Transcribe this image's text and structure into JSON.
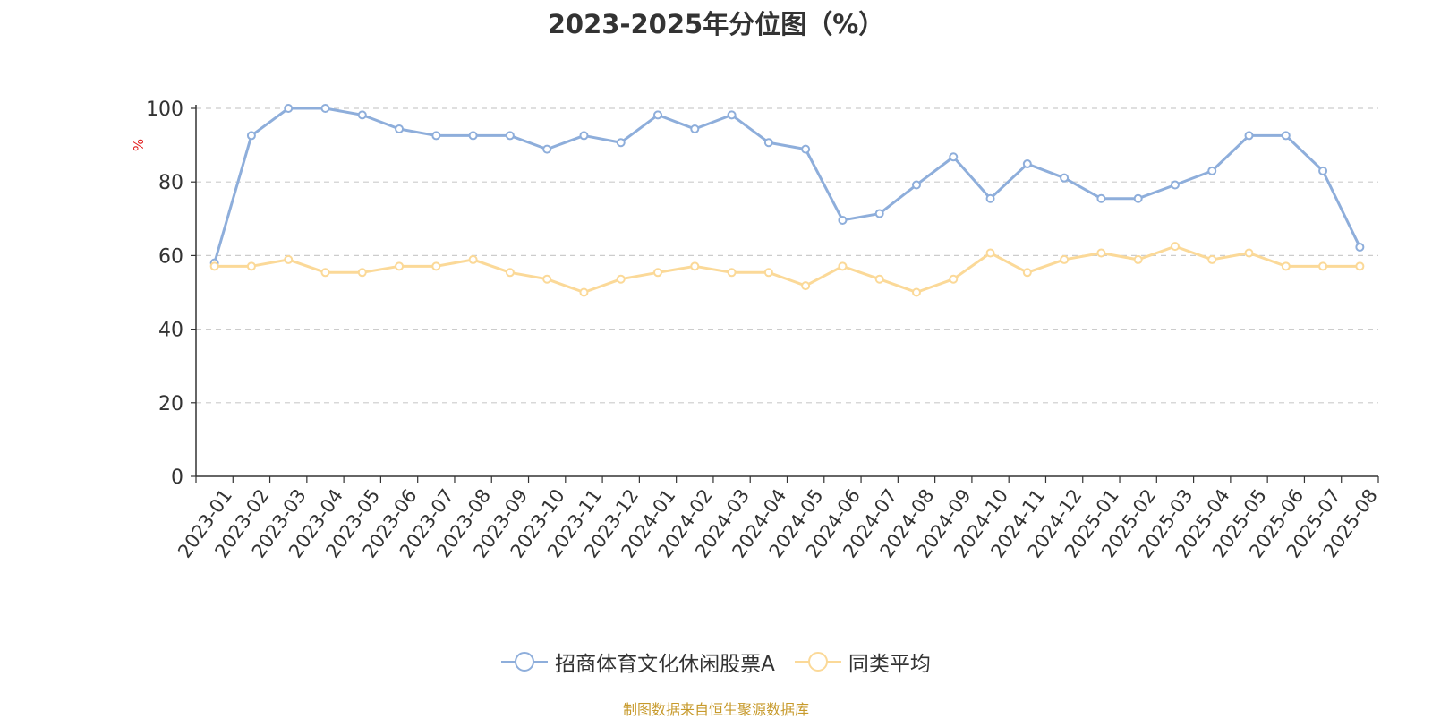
{
  "chart_data": {
    "type": "line",
    "title": "2023-2025年分位图（%）",
    "ylabel": "%",
    "ylim": [
      0,
      100
    ],
    "yticks": [
      0,
      20,
      40,
      60,
      80,
      100
    ],
    "grid": true,
    "legend_position": "bottom",
    "categories": [
      "2023-01",
      "2023-02",
      "2023-03",
      "2023-04",
      "2023-05",
      "2023-06",
      "2023-07",
      "2023-08",
      "2023-09",
      "2023-10",
      "2023-11",
      "2023-12",
      "2024-01",
      "2024-02",
      "2024-03",
      "2024-04",
      "2024-05",
      "2024-06",
      "2024-07",
      "2024-08",
      "2024-09",
      "2024-10",
      "2024-11",
      "2024-12",
      "2025-01",
      "2025-02",
      "2025-03",
      "2025-04",
      "2025-05",
      "2025-06",
      "2025-07",
      "2025-08"
    ],
    "series": [
      {
        "name": "招商体育文化休闲股票A",
        "color": "#8eaedb",
        "values": [
          58,
          92.6,
          100,
          100,
          98.2,
          94.4,
          92.6,
          92.6,
          92.6,
          88.9,
          92.6,
          90.7,
          98.2,
          94.4,
          98.2,
          90.7,
          88.9,
          69.6,
          71.4,
          79.2,
          86.8,
          75.5,
          84.9,
          81.1,
          75.5,
          75.5,
          79.2,
          83,
          92.6,
          92.6,
          83,
          62.3
        ]
      },
      {
        "name": "同类平均",
        "color": "#fbd998",
        "values": [
          57.1,
          57.1,
          58.9,
          55.4,
          55.4,
          57.1,
          57.1,
          58.9,
          55.4,
          53.6,
          50,
          53.6,
          55.4,
          57.1,
          55.4,
          55.4,
          51.8,
          57.1,
          53.6,
          50,
          53.6,
          60.7,
          55.4,
          58.9,
          60.7,
          58.9,
          62.5,
          58.9,
          60.7,
          57.1,
          57.1,
          57.1
        ]
      }
    ]
  },
  "source_note": "制图数据来自恒生聚源数据库"
}
